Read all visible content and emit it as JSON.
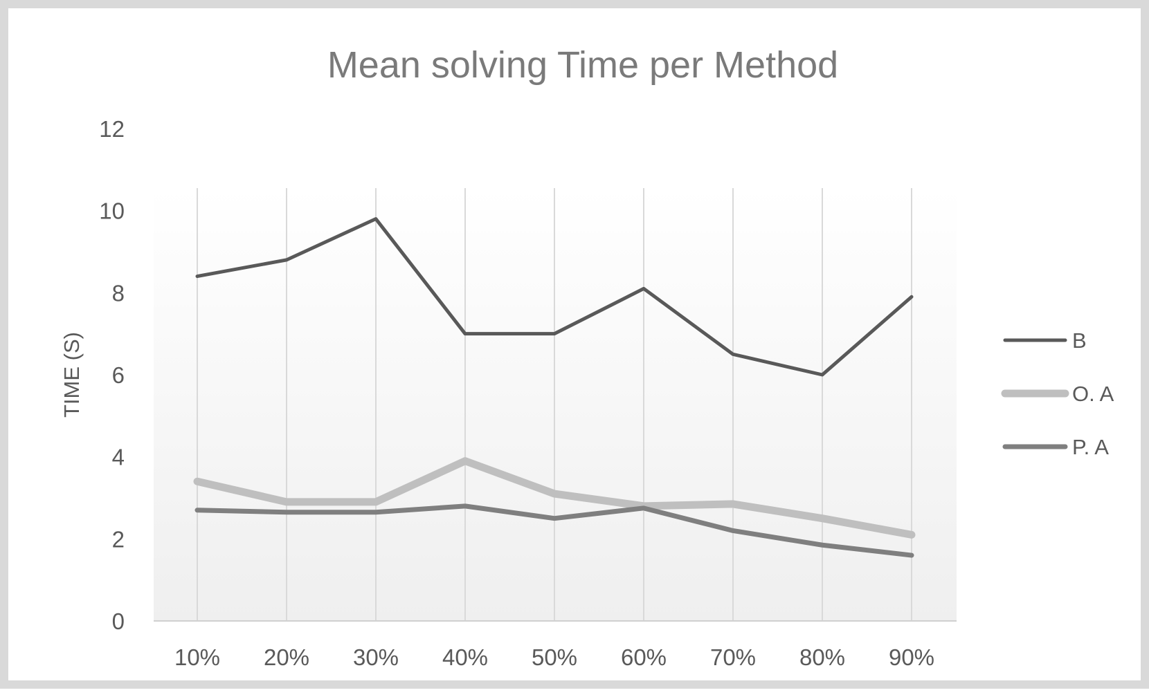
{
  "chart_data": {
    "type": "line",
    "title": "Mean solving Time per Method",
    "xlabel": "",
    "ylabel": "TIME (S)",
    "categories": [
      "10%",
      "20%",
      "30%",
      "40%",
      "50%",
      "60%",
      "70%",
      "80%",
      "90%"
    ],
    "ylim": [
      0,
      12
    ],
    "yticks": [
      0,
      2,
      4,
      6,
      8,
      10,
      12
    ],
    "grid": "vertical",
    "legend_position": "right",
    "series": [
      {
        "name": "B",
        "color": "#595959",
        "values": [
          8.4,
          8.8,
          9.8,
          7.0,
          7.0,
          8.1,
          6.5,
          6.0,
          7.9
        ]
      },
      {
        "name": "O. A",
        "color": "#bfbfbf",
        "values": [
          3.4,
          2.9,
          2.9,
          3.9,
          3.1,
          2.8,
          2.85,
          2.5,
          2.1
        ]
      },
      {
        "name": "P. A",
        "color": "#7f7f7f",
        "values": [
          2.7,
          2.65,
          2.65,
          2.8,
          2.5,
          2.75,
          2.2,
          1.85,
          1.6
        ]
      }
    ]
  }
}
